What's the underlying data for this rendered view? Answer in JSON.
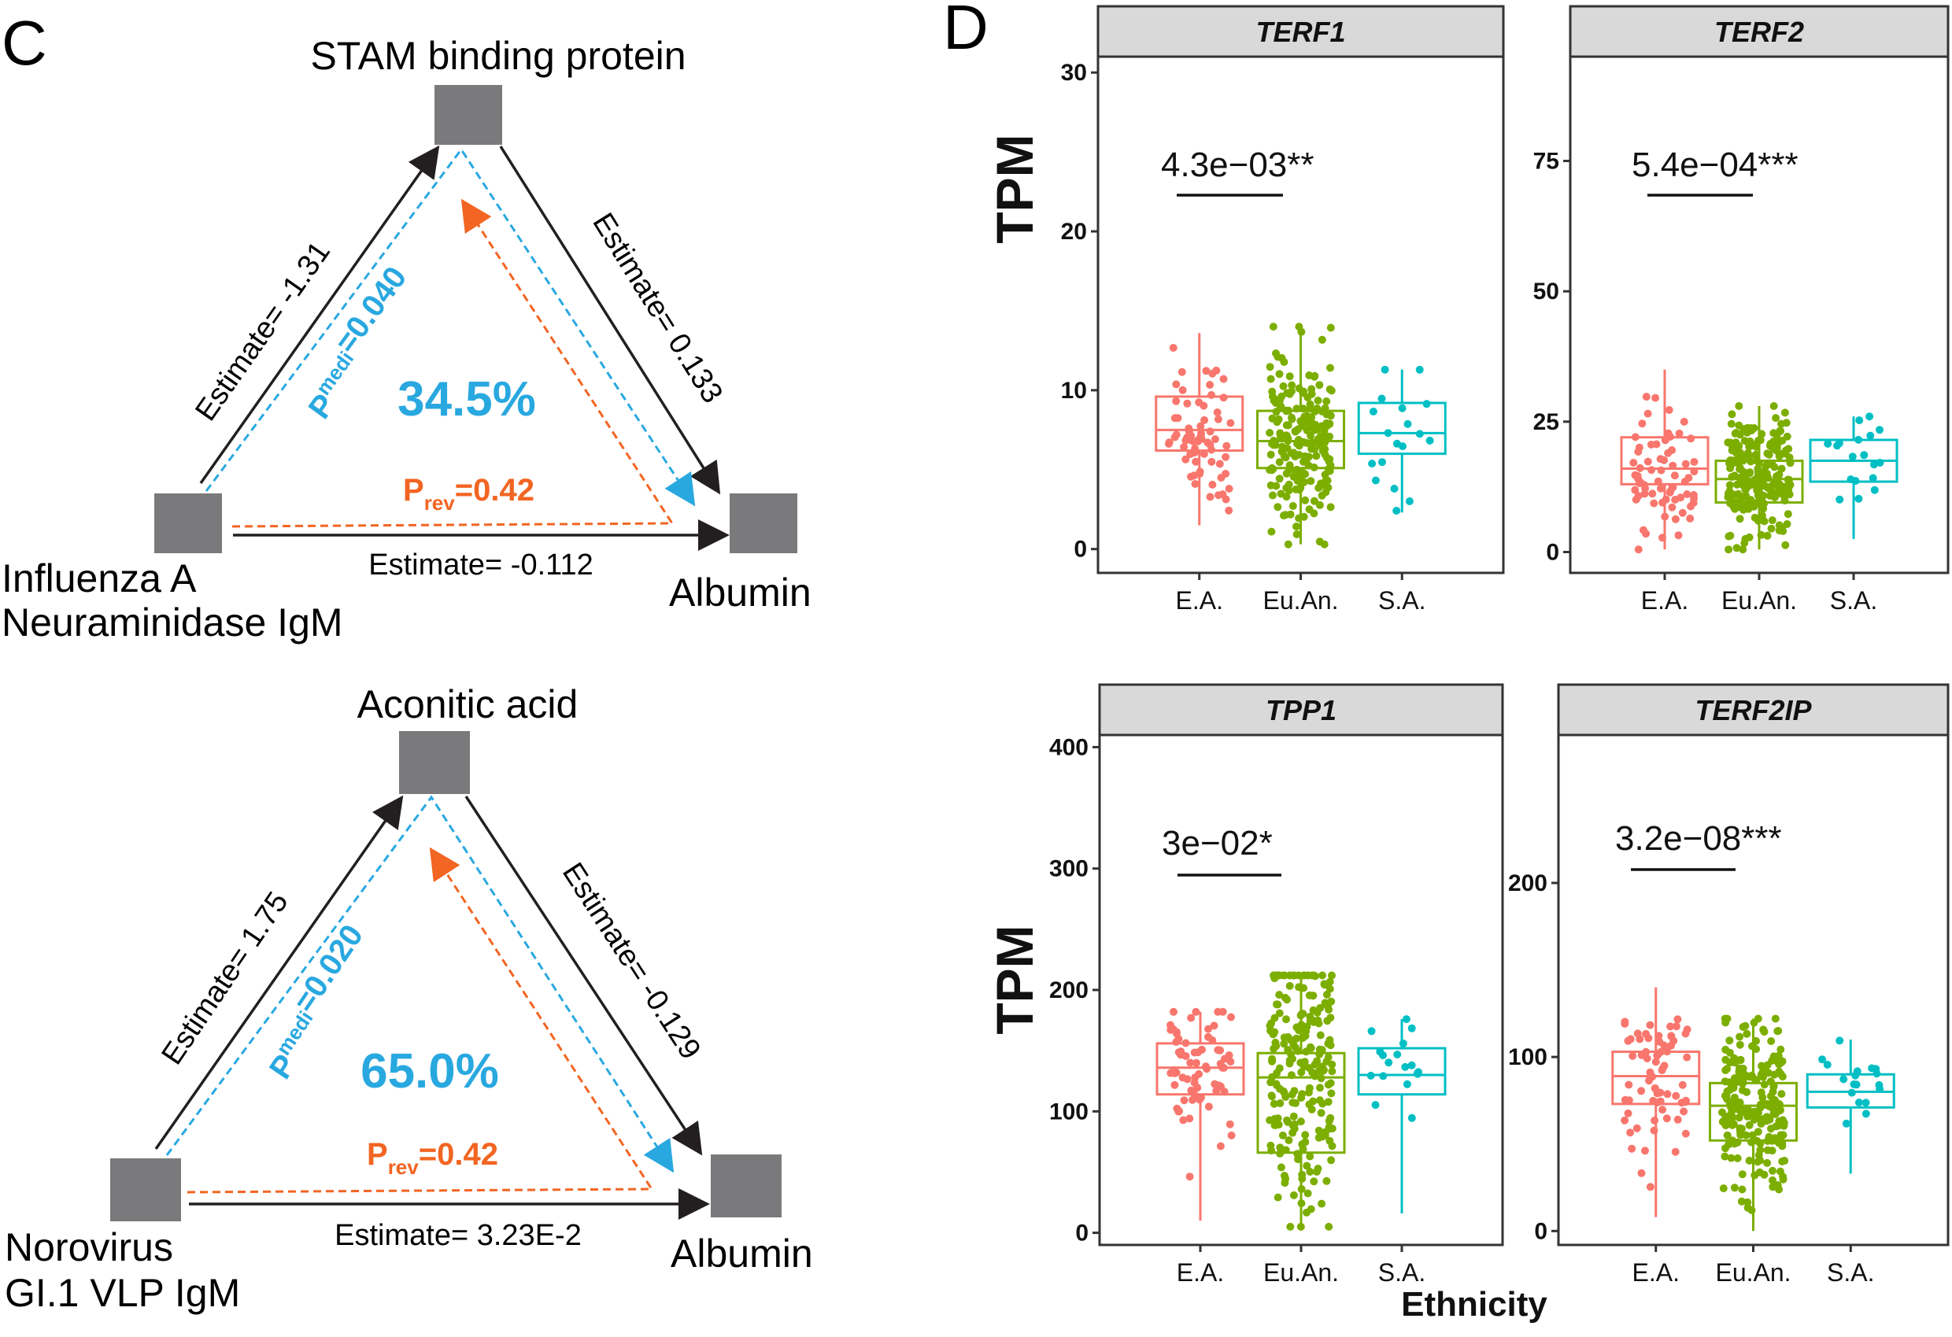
{
  "panels": {
    "c_letter": "C",
    "d_letter": "D"
  },
  "mediation": [
    {
      "top_label": "STAM binding protein",
      "left_label_lines": [
        "Influenza A",
        "Neuraminidase IgM"
      ],
      "right_label": "Albumin",
      "left_edge_label": "Estimate= -1.31",
      "right_edge_label": "Estimate= 0.133",
      "bottom_edge_label": "Estimate= -0.112",
      "p_medi_prefix": "P",
      "p_medi_sub": "medi",
      "p_medi_value": "=0.040",
      "p_rev_prefix": "P",
      "p_rev_sub": "rev",
      "p_rev_value": "=0.42",
      "percent": "34.5%"
    },
    {
      "top_label": "Aconitic acid",
      "left_label_lines": [
        "Norovirus",
        "GI.1 VLP IgM"
      ],
      "right_label": "Albumin",
      "left_edge_label": "Estimate= 1.75",
      "right_edge_label": "Estimate= -0.129",
      "bottom_edge_label": "Estimate= 3.23E-2",
      "p_medi_prefix": "P",
      "p_medi_sub": "medi",
      "p_medi_value": "=0.020",
      "p_rev_prefix": "P",
      "p_rev_sub": "rev",
      "p_rev_value": "=0.42",
      "percent": "65.0%"
    }
  ],
  "colors": {
    "node": "#7a7a7c",
    "arrow": "#231f20",
    "mediation_blue": "#29a8e0",
    "reverse_orange": "#f26522",
    "group_E.A.": "#f8766d",
    "group_Eu.An.": "#7cae00",
    "group_S.A.": "#00bfc4",
    "strip_fill": "#d9d9d9"
  },
  "chart_data": [
    {
      "type": "box",
      "title": "TERF1",
      "ylabel": "TPM",
      "xlabel": "Ethnicity",
      "categories": [
        "E.A.",
        "Eu.An.",
        "S.A."
      ],
      "ylim": [
        -1.5,
        31
      ],
      "yticks": [
        0,
        10,
        20,
        30
      ],
      "boxes": [
        {
          "group": "E.A.",
          "whisker_low": 1.5,
          "q1": 6.2,
          "median": 7.5,
          "q3": 9.6,
          "whisker_high": 13.6,
          "n_points": 70
        },
        {
          "group": "Eu.An.",
          "whisker_low": 0.3,
          "q1": 5.1,
          "median": 6.8,
          "q3": 8.7,
          "whisker_high": 14,
          "n_points": 220
        },
        {
          "group": "S.A.",
          "whisker_low": 2.3,
          "q1": 6.0,
          "median": 7.3,
          "q3": 9.2,
          "whisker_high": 11.3,
          "n_points": 18
        }
      ],
      "annotation": {
        "text": "4.3e−03**",
        "from": "E.A.",
        "to": "Eu.An."
      }
    },
    {
      "type": "box",
      "title": "TERF2",
      "ylabel": "TPM",
      "xlabel": "Ethnicity",
      "categories": [
        "E.A.",
        "Eu.An.",
        "S.A."
      ],
      "ylim": [
        -4,
        95
      ],
      "yticks": [
        0,
        25,
        50,
        75
      ],
      "boxes": [
        {
          "group": "E.A.",
          "whisker_low": 0.5,
          "q1": 13,
          "median": 16,
          "q3": 22,
          "whisker_high": 35,
          "n_points": 70
        },
        {
          "group": "Eu.An.",
          "whisker_low": 0.5,
          "q1": 9.5,
          "median": 14,
          "q3": 17.5,
          "whisker_high": 28,
          "n_points": 220
        },
        {
          "group": "S.A.",
          "whisker_low": 2.5,
          "q1": 13.5,
          "median": 17.5,
          "q3": 21.5,
          "whisker_high": 26,
          "n_points": 18
        }
      ],
      "annotation": {
        "text": "5.4e−04***",
        "from": "E.A.",
        "to": "Eu.An."
      }
    },
    {
      "type": "box",
      "title": "TPP1",
      "ylabel": "TPM",
      "xlabel": "Ethnicity",
      "categories": [
        "E.A.",
        "Eu.An.",
        "S.A."
      ],
      "ylim": [
        -10,
        410
      ],
      "yticks": [
        0,
        100,
        200,
        300,
        400
      ],
      "boxes": [
        {
          "group": "E.A.",
          "whisker_low": 10,
          "q1": 114,
          "median": 136,
          "q3": 156,
          "whisker_high": 182,
          "n_points": 70
        },
        {
          "group": "Eu.An.",
          "whisker_low": 5,
          "q1": 66,
          "median": 128,
          "q3": 148,
          "whisker_high": 212,
          "n_points": 220
        },
        {
          "group": "S.A.",
          "whisker_low": 16,
          "q1": 114,
          "median": 130,
          "q3": 152,
          "whisker_high": 176,
          "n_points": 18
        }
      ],
      "annotation": {
        "text": "3e−02*",
        "from": "E.A.",
        "to": "Eu.An."
      }
    },
    {
      "type": "box",
      "title": "TERF2IP",
      "ylabel": "TPM",
      "xlabel": "Ethnicity",
      "categories": [
        "E.A.",
        "Eu.An.",
        "S.A."
      ],
      "ylim": [
        -8,
        285
      ],
      "yticks": [
        0,
        100,
        200
      ],
      "boxes": [
        {
          "group": "E.A.",
          "whisker_low": 8,
          "q1": 73,
          "median": 89,
          "q3": 103,
          "whisker_high": 140,
          "n_points": 70
        },
        {
          "group": "Eu.An.",
          "whisker_low": 0,
          "q1": 52,
          "median": 72,
          "q3": 85,
          "whisker_high": 122,
          "n_points": 220
        },
        {
          "group": "S.A.",
          "whisker_low": 33,
          "q1": 71,
          "median": 80,
          "q3": 90,
          "whisker_high": 110,
          "n_points": 18
        }
      ],
      "annotation": {
        "text": "3.2e−08***",
        "from": "E.A.",
        "to": "Eu.An."
      }
    }
  ]
}
